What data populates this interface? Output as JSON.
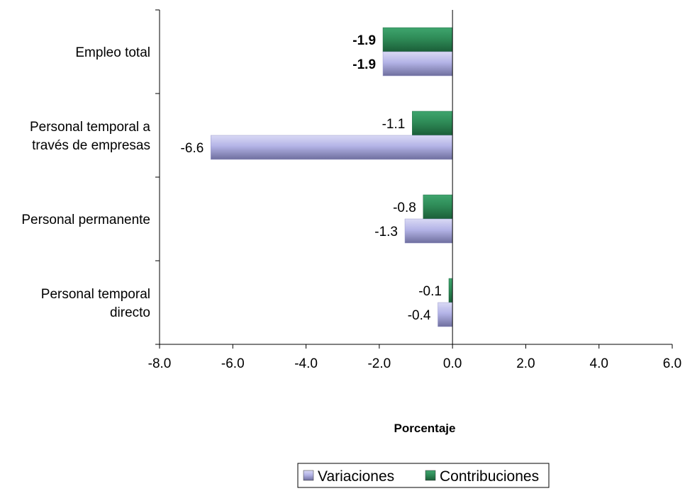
{
  "chart_data": {
    "type": "bar",
    "orientation": "horizontal",
    "categories": [
      "Empleo total",
      "Personal temporal a través de empresas",
      "Personal permanente",
      "Personal temporal directo"
    ],
    "category_lines": [
      [
        "Empleo total"
      ],
      [
        "Personal temporal a",
        "través de empresas"
      ],
      [
        "Personal permanente"
      ],
      [
        "Personal temporal",
        "directo"
      ]
    ],
    "series": [
      {
        "name": "Variaciones",
        "color": "#b3b3e6",
        "values": [
          -1.9,
          -6.6,
          -1.3,
          -0.4
        ],
        "labels": [
          "-1.9",
          "-6.6",
          "-1.3",
          "-0.4"
        ]
      },
      {
        "name": "Contribuciones",
        "color": "#2e8b57",
        "values": [
          -1.9,
          -1.1,
          -0.8,
          -0.1
        ],
        "labels": [
          "-1.9",
          "-1.1",
          "-0.8",
          "-0.1"
        ]
      }
    ],
    "bold_label_categories": [
      0
    ],
    "title": "",
    "xlabel": "Porcentaje",
    "ylabel": "",
    "xlim": [
      -8.0,
      6.0
    ],
    "xticks": [
      -8.0,
      -6.0,
      -4.0,
      -2.0,
      0.0,
      2.0,
      4.0,
      6.0
    ],
    "xtick_labels": [
      "-8.0",
      "-6.0",
      "-4.0",
      "-2.0",
      "0.0",
      "2.0",
      "4.0",
      "6.0"
    ],
    "grid": false,
    "legend_position": "bottom"
  }
}
